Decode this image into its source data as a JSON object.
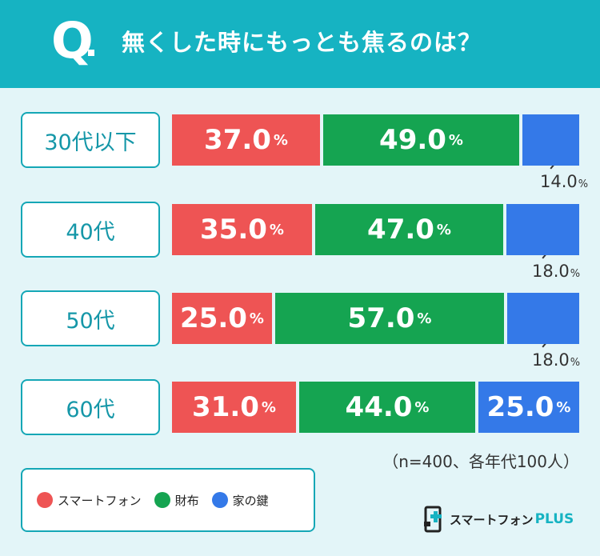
{
  "header": {
    "q_mark": "Q",
    "question": "無くした時にもっとも焦るのは？"
  },
  "note": "（n=400、各年代100人）",
  "legend": {
    "items": [
      {
        "label": "スマートフォン",
        "color": "#ee5454"
      },
      {
        "label": "財布",
        "color": "#15a451"
      },
      {
        "label": "家の鍵",
        "color": "#3479e8"
      }
    ]
  },
  "logo": {
    "text": "スマートフォン",
    "plus": "PLUS"
  },
  "colors": {
    "accent": "#16b3c2",
    "background": "#e3f5f8"
  },
  "chart_data": {
    "type": "bar",
    "orientation": "horizontal-stacked-100",
    "title": "無くした時にもっとも焦るのは？",
    "categories": [
      "30代以下",
      "40代",
      "50代",
      "60代"
    ],
    "series": [
      {
        "name": "スマートフォン",
        "values": [
          37.0,
          35.0,
          25.0,
          31.0
        ],
        "color": "#ee5454"
      },
      {
        "name": "財布",
        "values": [
          49.0,
          47.0,
          57.0,
          44.0
        ],
        "color": "#15a451"
      },
      {
        "name": "家の鍵",
        "values": [
          14.0,
          18.0,
          18.0,
          25.0
        ],
        "color": "#3479e8"
      }
    ],
    "unit": "%",
    "legend_position": "bottom-left",
    "grid": false
  }
}
